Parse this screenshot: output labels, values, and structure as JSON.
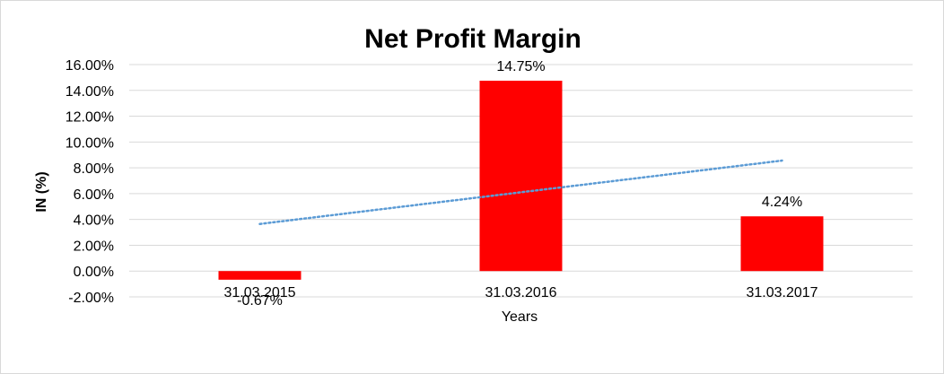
{
  "chart_data": {
    "type": "bar",
    "title": "Net Profit Margin",
    "xlabel": "Years",
    "ylabel": "IN (%)",
    "categories": [
      "31.03.2015",
      "31.03.2016",
      "31.03.2017"
    ],
    "values": [
      -0.67,
      14.75,
      4.24
    ],
    "data_labels": [
      "-0.67%",
      "14.75%",
      "4.24%"
    ],
    "ylim": [
      -2,
      16
    ],
    "y_ticks": [
      -2,
      0,
      2,
      4,
      6,
      8,
      10,
      12,
      14,
      16
    ],
    "y_tick_labels": [
      "-2.00%",
      "0.00%",
      "2.00%",
      "4.00%",
      "6.00%",
      "8.00%",
      "10.00%",
      "12.00%",
      "14.00%",
      "16.00%"
    ],
    "grid": true,
    "legend": "none",
    "bar_color": "#ff0000",
    "trendline": {
      "type": "linear",
      "style": "dotted",
      "color": "#5b9bd5",
      "start_value": 3.65,
      "end_value": 8.56
    }
  }
}
